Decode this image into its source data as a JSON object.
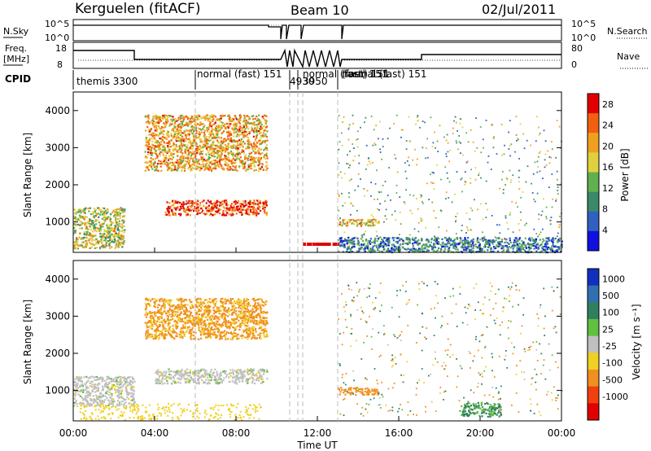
{
  "header": {
    "station": "Kerguelen",
    "fit": "(fitACF)",
    "beam": "Beam 10",
    "date": "02/Jul/2011"
  },
  "top_panels": {
    "nsky_label": "N.Sky",
    "nsearch_label": "N.Search",
    "freq_label": "Freq.",
    "freq_unit": "[MHz]",
    "nave_label": "Nave",
    "cpid_label": "CPID",
    "left_ticks_nsky": [
      "10^5",
      "10^0"
    ],
    "right_ticks_nsearch": [
      "10^5",
      "10^0"
    ],
    "left_ticks_freq": [
      "18",
      "8"
    ],
    "right_ticks_nave": [
      "80",
      "0"
    ]
  },
  "cpid_labels": [
    "themis 3300",
    "normal (fast) 151",
    "4930",
    "3950",
    "normal (fast) 151",
    "(fast) 151",
    "normal (fast) 151"
  ],
  "x_axis": {
    "label": "Time UT",
    "ticks": [
      "00:00",
      "04:00",
      "08:00",
      "12:00",
      "16:00",
      "20:00",
      "00:00"
    ]
  },
  "y_axis": {
    "label": "Slant Range [km]",
    "ticks": [
      "1000",
      "2000",
      "3000",
      "4000"
    ]
  },
  "power_scale": {
    "label": "Power [dB]",
    "ticks": [
      "4",
      "8",
      "12",
      "16",
      "20",
      "24",
      "28"
    ]
  },
  "velocity_scale": {
    "label": "Velocity [m s⁻¹]",
    "ticks": [
      "1000",
      "500",
      "100",
      "25",
      "-25",
      "-100",
      "-500",
      "-1000"
    ]
  },
  "colors": {
    "power": [
      "#1010e0",
      "#3060c0",
      "#3a8a6a",
      "#60b050",
      "#e0d040",
      "#f0a020",
      "#f06010",
      "#e00000"
    ],
    "velocity": [
      "#1030c0",
      "#3070b0",
      "#308060",
      "#60c040",
      "#c0c0c0",
      "#f0d020",
      "#f09020",
      "#f04010",
      "#e00000"
    ]
  },
  "chart_data": [
    {
      "type": "heatmap",
      "title": "Power",
      "xlabel": "Time UT",
      "ylabel": "Slant Range [km]",
      "xlim": [
        "00:00",
        "24:00"
      ],
      "ylim": [
        180,
        4500
      ],
      "colorbar": {
        "label": "Power [dB]",
        "range": [
          0,
          30
        ]
      },
      "features": [
        {
          "start": "00:00",
          "end": "02:30",
          "range_km": [
            300,
            1400
          ],
          "power_db": 16
        },
        {
          "start": "03:30",
          "end": "09:30",
          "range_km": [
            2400,
            3900
          ],
          "power_db": 20
        },
        {
          "start": "04:30",
          "end": "09:30",
          "range_km": [
            1200,
            1600
          ],
          "power_db": 26
        },
        {
          "start": "13:00",
          "end": "15:00",
          "range_km": [
            900,
            1100
          ],
          "power_db": 20
        },
        {
          "start": "13:00",
          "end": "24:00",
          "range_km": [
            200,
            600
          ],
          "power_db": 8
        }
      ]
    },
    {
      "type": "heatmap",
      "title": "Velocity",
      "xlabel": "Time UT",
      "ylabel": "Slant Range [km]",
      "xlim": [
        "00:00",
        "24:00"
      ],
      "ylim": [
        180,
        4500
      ],
      "colorbar": {
        "label": "Velocity [m s⁻¹]",
        "range": [
          -1000,
          1000
        ]
      },
      "features": [
        {
          "start": "00:00",
          "end": "03:00",
          "range_km": [
            600,
            1400
          ],
          "velocity": 0
        },
        {
          "start": "03:30",
          "end": "09:30",
          "range_km": [
            2400,
            3500
          ],
          "velocity": -150
        },
        {
          "start": "04:00",
          "end": "09:30",
          "range_km": [
            1200,
            1600
          ],
          "velocity": 0
        },
        {
          "start": "13:00",
          "end": "15:00",
          "range_km": [
            900,
            1100
          ],
          "velocity": -300
        },
        {
          "start": "19:00",
          "end": "21:00",
          "range_km": [
            300,
            700
          ],
          "velocity": 120
        }
      ]
    }
  ]
}
